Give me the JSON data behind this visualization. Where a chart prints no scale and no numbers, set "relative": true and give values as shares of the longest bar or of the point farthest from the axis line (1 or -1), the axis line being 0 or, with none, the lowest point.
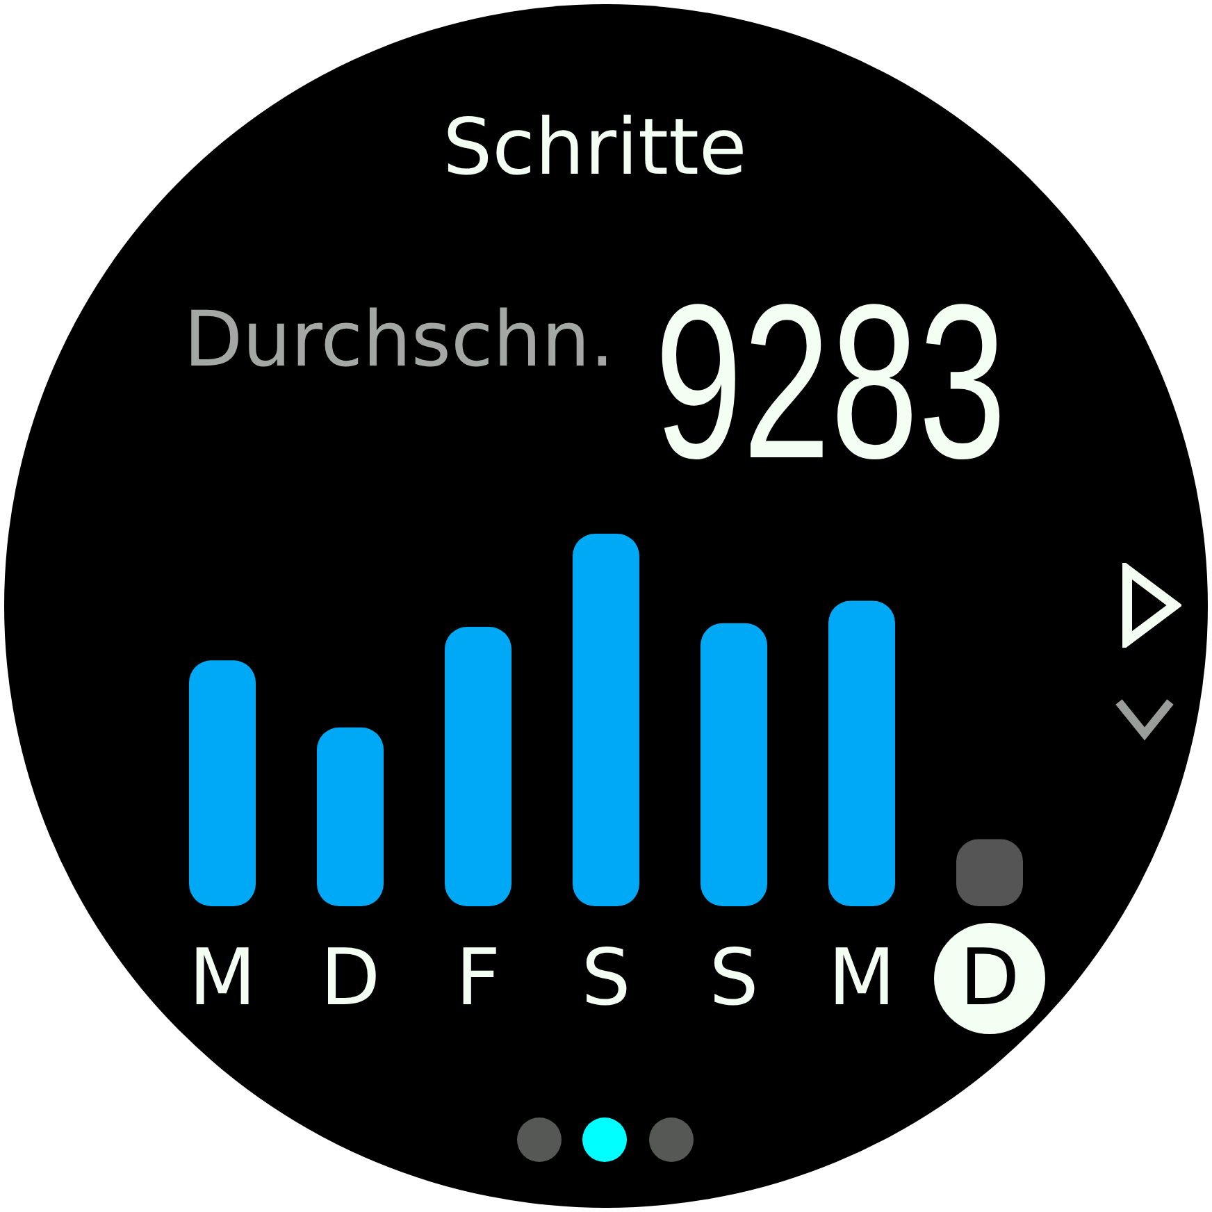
{
  "chart_data": {
    "type": "bar",
    "title": "Schritte",
    "annotations": [
      "Durchschn.",
      "9283"
    ],
    "categories": [
      "M",
      "D",
      "F",
      "S",
      "S",
      "M",
      "D"
    ],
    "values": [
      0.66,
      0.48,
      0.75,
      1,
      0.76,
      0.82,
      0.18
    ],
    "colors": [
      "#00a9f5",
      "#00a9f5",
      "#00a9f5",
      "#00a9f5",
      "#00a9f5",
      "#00a9f5",
      "#555555"
    ],
    "relative": true,
    "grid": false
  }
}
